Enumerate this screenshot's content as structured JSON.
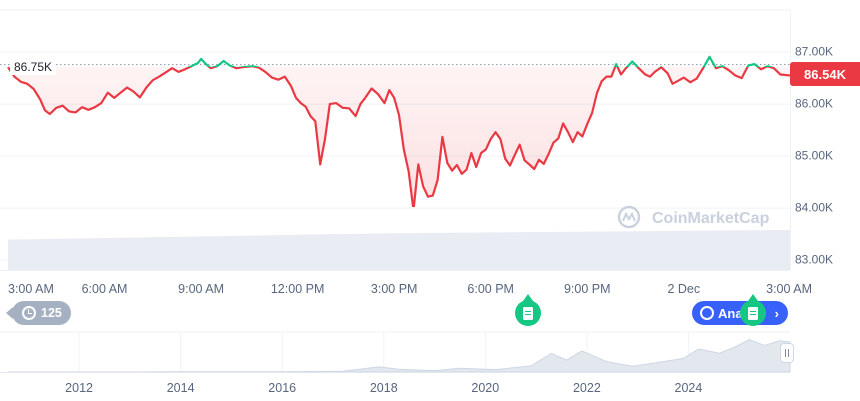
{
  "chart_data": {
    "type": "line",
    "title": "",
    "watermark": "CoinMarketCap",
    "y_axis": {
      "ticks": [
        "87.00K",
        "86.00K",
        "85.00K",
        "84.00K",
        "83.00K"
      ],
      "tick_values": [
        87000,
        86000,
        85000,
        84000,
        83000
      ],
      "ylim": [
        82800,
        87800
      ],
      "position": "right"
    },
    "x_axis": {
      "ticks": [
        "3:00 AM",
        "6:00 AM",
        "9:00 AM",
        "12:00 PM",
        "3:00 PM",
        "6:00 PM",
        "9:00 PM",
        "2 Dec",
        "3:00 AM"
      ],
      "tick_hours": [
        0,
        3,
        6,
        9,
        12,
        15,
        18,
        21,
        24
      ],
      "range_hours": [
        0,
        24.3
      ]
    },
    "open_price": {
      "value": 86750,
      "label": "86.75K"
    },
    "current_price": {
      "value": 86540,
      "label": "86.54K"
    },
    "series_color_above": "#16c784",
    "series_color_below": "#ea3943",
    "grid": true,
    "price_series": [
      [
        0.0,
        86700
      ],
      [
        0.2,
        86520
      ],
      [
        0.4,
        86420
      ],
      [
        0.6,
        86380
      ],
      [
        0.8,
        86280
      ],
      [
        1.0,
        86080
      ],
      [
        1.15,
        85870
      ],
      [
        1.3,
        85800
      ],
      [
        1.5,
        85920
      ],
      [
        1.7,
        85960
      ],
      [
        1.9,
        85850
      ],
      [
        2.1,
        85830
      ],
      [
        2.3,
        85930
      ],
      [
        2.5,
        85880
      ],
      [
        2.7,
        85930
      ],
      [
        2.9,
        86010
      ],
      [
        3.1,
        86210
      ],
      [
        3.3,
        86110
      ],
      [
        3.5,
        86210
      ],
      [
        3.7,
        86310
      ],
      [
        3.9,
        86230
      ],
      [
        4.1,
        86120
      ],
      [
        4.3,
        86310
      ],
      [
        4.5,
        86450
      ],
      [
        4.7,
        86520
      ],
      [
        4.9,
        86600
      ],
      [
        5.1,
        86680
      ],
      [
        5.3,
        86610
      ],
      [
        5.5,
        86660
      ],
      [
        5.7,
        86720
      ],
      [
        5.9,
        86780
      ],
      [
        6.0,
        86860
      ],
      [
        6.15,
        86760
      ],
      [
        6.3,
        86680
      ],
      [
        6.5,
        86720
      ],
      [
        6.7,
        86820
      ],
      [
        6.9,
        86730
      ],
      [
        7.1,
        86680
      ],
      [
        7.3,
        86700
      ],
      [
        7.6,
        86720
      ],
      [
        7.8,
        86690
      ],
      [
        8.0,
        86610
      ],
      [
        8.2,
        86500
      ],
      [
        8.4,
        86460
      ],
      [
        8.6,
        86520
      ],
      [
        8.8,
        86330
      ],
      [
        8.95,
        86110
      ],
      [
        9.1,
        86010
      ],
      [
        9.25,
        85940
      ],
      [
        9.4,
        85760
      ],
      [
        9.55,
        85660
      ],
      [
        9.7,
        84830
      ],
      [
        9.85,
        85320
      ],
      [
        10.0,
        85990
      ],
      [
        10.2,
        86010
      ],
      [
        10.4,
        85920
      ],
      [
        10.6,
        85910
      ],
      [
        10.8,
        85760
      ],
      [
        10.95,
        85990
      ],
      [
        11.1,
        86110
      ],
      [
        11.3,
        86290
      ],
      [
        11.5,
        86180
      ],
      [
        11.7,
        86010
      ],
      [
        11.85,
        86260
      ],
      [
        12.0,
        86110
      ],
      [
        12.15,
        85780
      ],
      [
        12.3,
        85120
      ],
      [
        12.45,
        84690
      ],
      [
        12.6,
        83950
      ],
      [
        12.75,
        84830
      ],
      [
        12.9,
        84410
      ],
      [
        13.05,
        84210
      ],
      [
        13.2,
        84230
      ],
      [
        13.35,
        84530
      ],
      [
        13.5,
        85360
      ],
      [
        13.65,
        84860
      ],
      [
        13.8,
        84710
      ],
      [
        13.95,
        84820
      ],
      [
        14.1,
        84650
      ],
      [
        14.25,
        84730
      ],
      [
        14.4,
        85050
      ],
      [
        14.55,
        84780
      ],
      [
        14.7,
        85050
      ],
      [
        14.85,
        85120
      ],
      [
        15.0,
        85320
      ],
      [
        15.15,
        85450
      ],
      [
        15.3,
        85320
      ],
      [
        15.45,
        84940
      ],
      [
        15.6,
        84810
      ],
      [
        15.75,
        85020
      ],
      [
        15.9,
        85210
      ],
      [
        16.05,
        84910
      ],
      [
        16.2,
        84830
      ],
      [
        16.35,
        84740
      ],
      [
        16.5,
        84920
      ],
      [
        16.65,
        84840
      ],
      [
        16.8,
        85030
      ],
      [
        16.95,
        85250
      ],
      [
        17.1,
        85330
      ],
      [
        17.25,
        85620
      ],
      [
        17.4,
        85450
      ],
      [
        17.55,
        85260
      ],
      [
        17.7,
        85450
      ],
      [
        17.85,
        85370
      ],
      [
        18.0,
        85610
      ],
      [
        18.15,
        85820
      ],
      [
        18.3,
        86200
      ],
      [
        18.45,
        86430
      ],
      [
        18.6,
        86520
      ],
      [
        18.75,
        86520
      ],
      [
        18.9,
        86760
      ],
      [
        19.05,
        86560
      ],
      [
        19.2,
        86680
      ],
      [
        19.4,
        86810
      ],
      [
        19.6,
        86680
      ],
      [
        19.8,
        86560
      ],
      [
        19.95,
        86520
      ],
      [
        20.1,
        86610
      ],
      [
        20.3,
        86700
      ],
      [
        20.5,
        86580
      ],
      [
        20.65,
        86380
      ],
      [
        20.8,
        86430
      ],
      [
        21.0,
        86500
      ],
      [
        21.2,
        86410
      ],
      [
        21.4,
        86480
      ],
      [
        21.6,
        86680
      ],
      [
        21.8,
        86900
      ],
      [
        22.0,
        86680
      ],
      [
        22.2,
        86720
      ],
      [
        22.4,
        86640
      ],
      [
        22.6,
        86540
      ],
      [
        22.8,
        86490
      ],
      [
        23.0,
        86730
      ],
      [
        23.2,
        86760
      ],
      [
        23.4,
        86660
      ],
      [
        23.6,
        86720
      ],
      [
        23.8,
        86680
      ],
      [
        24.0,
        86560
      ],
      [
        24.3,
        86540
      ]
    ],
    "volume_series": [
      [
        0.0,
        0.38
      ],
      [
        3.0,
        0.4
      ],
      [
        6.0,
        0.42
      ],
      [
        9.0,
        0.44
      ],
      [
        12.0,
        0.46
      ],
      [
        15.0,
        0.47
      ],
      [
        18.0,
        0.48
      ],
      [
        21.0,
        0.49
      ],
      [
        24.0,
        0.5
      ],
      [
        24.3,
        0.5
      ]
    ],
    "navigator": {
      "x_ticks": [
        "2012",
        "2014",
        "2016",
        "2018",
        "2020",
        "2022",
        "2024"
      ],
      "tick_years": [
        2012,
        2014,
        2016,
        2018,
        2020,
        2022,
        2024
      ],
      "range_years": [
        2010.6,
        2026.0
      ],
      "overview_series": [
        [
          2010.6,
          0.0
        ],
        [
          2013.0,
          0.0
        ],
        [
          2013.9,
          0.01
        ],
        [
          2014.5,
          0.01
        ],
        [
          2016.0,
          0.01
        ],
        [
          2017.2,
          0.02
        ],
        [
          2017.9,
          0.15
        ],
        [
          2018.3,
          0.08
        ],
        [
          2019.0,
          0.04
        ],
        [
          2019.5,
          0.11
        ],
        [
          2020.2,
          0.07
        ],
        [
          2020.9,
          0.18
        ],
        [
          2021.3,
          0.55
        ],
        [
          2021.6,
          0.35
        ],
        [
          2021.9,
          0.62
        ],
        [
          2022.4,
          0.3
        ],
        [
          2022.9,
          0.17
        ],
        [
          2023.4,
          0.28
        ],
        [
          2023.9,
          0.4
        ],
        [
          2024.2,
          0.68
        ],
        [
          2024.6,
          0.55
        ],
        [
          2024.9,
          0.72
        ],
        [
          2025.2,
          0.95
        ],
        [
          2025.5,
          0.78
        ],
        [
          2025.8,
          0.92
        ],
        [
          2026.0,
          0.88
        ]
      ]
    }
  },
  "controls": {
    "history_count": "125",
    "analysis_label": "Ana",
    "analysis_chevron": "›",
    "handle": "||"
  },
  "icons": [
    "history-icon",
    "news-icon",
    "analysis-icon",
    "chevron-right-icon"
  ]
}
